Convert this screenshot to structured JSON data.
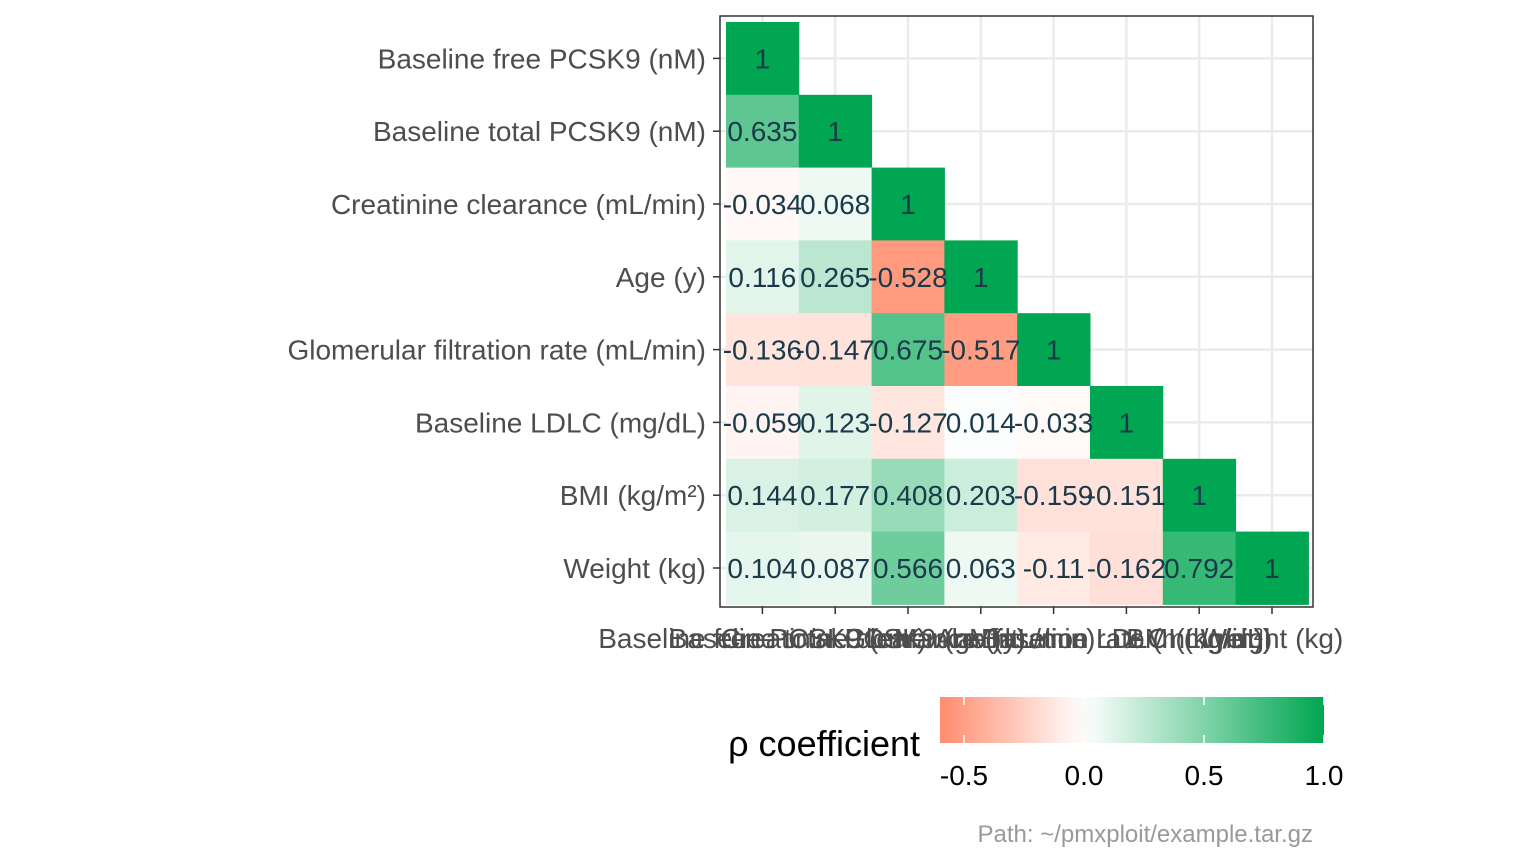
{
  "chart_data": {
    "type": "heatmap",
    "variables": [
      "Baseline free PCSK9 (nM)",
      "Baseline total PCSK9 (nM)",
      "Creatinine clearance (mL/min)",
      "Age (y)",
      "Glomerular filtration rate (mL/min)",
      "Baseline LDLC (mg/dL)",
      "BMI (kg/m²)",
      "Weight (kg)"
    ],
    "matrix": [
      [
        1
      ],
      [
        0.635,
        1
      ],
      [
        -0.034,
        0.068,
        1
      ],
      [
        0.116,
        0.265,
        -0.528,
        1
      ],
      [
        -0.136,
        -0.147,
        0.675,
        -0.517,
        1
      ],
      [
        -0.059,
        0.123,
        -0.127,
        0.014,
        -0.033,
        1
      ],
      [
        0.144,
        0.177,
        0.408,
        0.203,
        -0.159,
        -0.151,
        1
      ],
      [
        0.104,
        0.087,
        0.566,
        0.063,
        -0.11,
        -0.162,
        0.792,
        1
      ]
    ],
    "cell_labels": [
      [
        "1"
      ],
      [
        "0.635",
        "1"
      ],
      [
        "-0.034",
        "0.068",
        "1"
      ],
      [
        "0.116",
        "0.265",
        "-0.528",
        "1"
      ],
      [
        "-0.136",
        "-0.147",
        "0.675",
        "-0.517",
        "1"
      ],
      [
        "-0.059",
        "0.123",
        "-0.127",
        "0.014",
        "-0.033",
        "1"
      ],
      [
        "0.144",
        "0.177",
        "0.408",
        "0.203",
        "-0.159",
        "-0.151",
        "1"
      ],
      [
        "0.104",
        "0.087",
        "0.566",
        "0.063",
        "-0.11",
        "-0.162",
        "0.792",
        "1"
      ]
    ],
    "legend": {
      "title": "ρ coefficient",
      "ticks": [
        -0.5,
        0.0,
        0.5,
        1.0
      ],
      "tick_labels": [
        "-0.5",
        "0.0",
        "0.5",
        "1.0"
      ],
      "range": [
        -0.6,
        1.0
      ],
      "placement": "bottom"
    },
    "colors": {
      "low": "#ff8c6e",
      "mid": "#ffffff",
      "high": "#00a651",
      "grid": "#ebebeb",
      "panel_border": "#333333"
    },
    "grid": true
  },
  "caption": "Path: ~/pmxploit/example.tar.gz"
}
